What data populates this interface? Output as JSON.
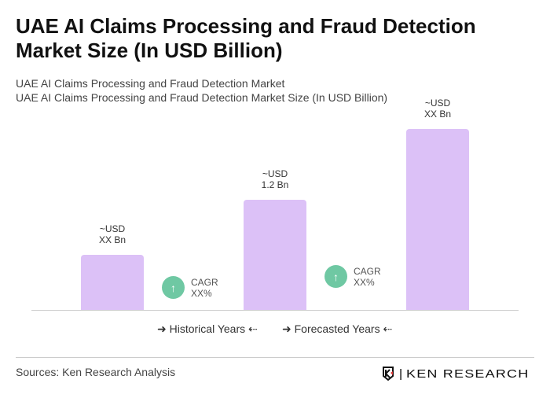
{
  "title": "UAE AI Claims Processing and Fraud Detection Market Size (In USD Billion)",
  "subtitle1": "UAE AI Claims Processing and Fraud Detection Market",
  "subtitle2": "UAE AI Claims Processing and Fraud Detection Market Size (In USD Billion)",
  "chart_data": {
    "type": "bar",
    "categories": [
      "",
      "",
      ""
    ],
    "values": [
      null,
      1.2,
      null
    ],
    "data_labels": [
      [
        "~USD",
        "XX Bn"
      ],
      [
        "~USD",
        "1.2 Bn"
      ],
      [
        "~USD",
        "XX Bn"
      ]
    ],
    "bar_color": "#dcc1f7",
    "cagr": [
      {
        "label": "CAGR",
        "value": "XX%"
      },
      {
        "label": "CAGR",
        "value": "XX%"
      }
    ],
    "cagr_color": "#6fc8a3",
    "legend": [
      "Historical Years",
      "Forecasted Years"
    ]
  },
  "icons": {
    "cagr": "arrow-up-icon",
    "legend": "arrow-right-left-icon"
  },
  "sources": "Sources: Ken Research Analysis",
  "logo": "KEN RESEARCH"
}
